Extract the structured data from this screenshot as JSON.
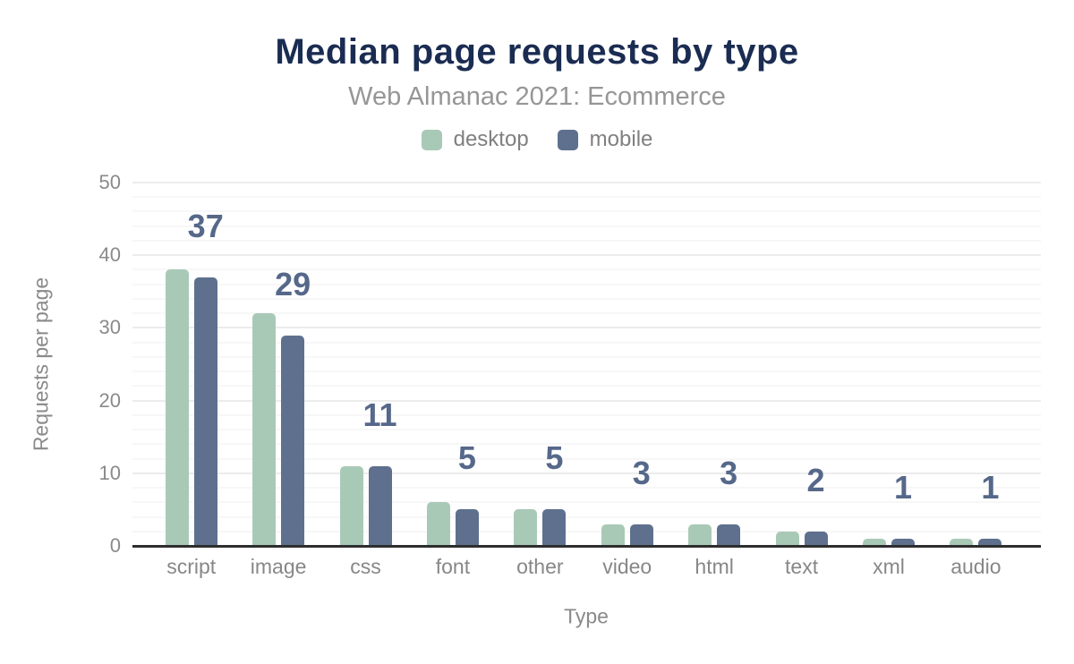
{
  "header": {
    "title": "Median page requests by type",
    "subtitle": "Web Almanac 2021: Ecommerce"
  },
  "chart_data": {
    "type": "bar",
    "title": "Median page requests by type",
    "subtitle": "Web Almanac 2021: Ecommerce",
    "xlabel": "Type",
    "ylabel": "Requests per page",
    "categories": [
      "script",
      "image",
      "css",
      "font",
      "other",
      "video",
      "html",
      "text",
      "xml",
      "audio"
    ],
    "series": [
      {
        "name": "desktop",
        "color": "#a9c9b7",
        "values": [
          38,
          32,
          11,
          6,
          5,
          3,
          3,
          2,
          1,
          1
        ]
      },
      {
        "name": "mobile",
        "color": "#5e708e",
        "values": [
          37,
          29,
          11,
          5,
          5,
          3,
          3,
          2,
          1,
          1
        ]
      }
    ],
    "data_labels": [
      "37",
      "29",
      "11",
      "5",
      "5",
      "3",
      "3",
      "2",
      "1",
      "1"
    ],
    "ylim": [
      0,
      50
    ],
    "yticks": [
      "0",
      "10",
      "20",
      "30",
      "40",
      "50"
    ],
    "minor_grid_step": 2,
    "major_grid_step": 10,
    "grid": true,
    "legend_position": "top"
  },
  "colors": {
    "title": "#1b2c52",
    "subtitle": "#969696",
    "axis_text": "#8a8a8a",
    "data_label": "#56688a",
    "desktop": "#a9c9b7",
    "mobile": "#5e708e",
    "axis_line": "#2e2e2e",
    "grid_minor": "#f7f7f7",
    "grid_major": "#ececec"
  }
}
